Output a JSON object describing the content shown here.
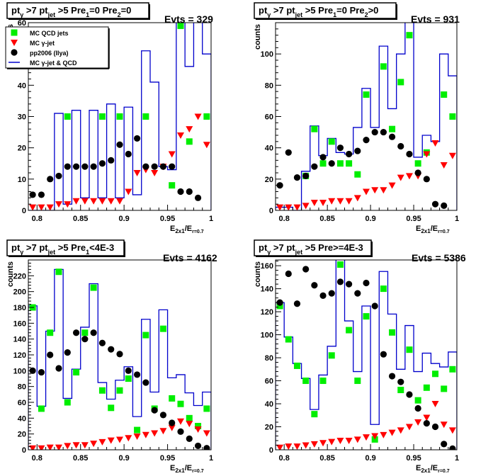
{
  "figure": {
    "background": "#ffffff"
  },
  "colors": {
    "qcd": "#00ee00",
    "gamma": "#ff0000",
    "data": "#000000",
    "sum": "#0000cc"
  },
  "legend": {
    "entries": [
      {
        "label": "MC QCD jets",
        "marker": "square",
        "color": "#00ee00"
      },
      {
        "label": "MC γ-jet",
        "marker": "triangle-down",
        "color": "#ff0000"
      },
      {
        "label": "pp2006 (Ilya)",
        "marker": "circle",
        "color": "#000000"
      },
      {
        "label": "MC γ-jet & QCD",
        "marker": "line",
        "color": "#0000cc"
      }
    ]
  },
  "chart_data": [
    {
      "type": "histogram+scatter",
      "title": "ptγ>7 pt jet>5 Pre1=0 Pre2=0",
      "title_parts": {
        "a": "pt",
        "a_sub": "γ",
        "b": " >7  pt",
        "b_sub": "jet",
        "c": " >5 Pre",
        "c_sub": "1",
        "d": "=0 Pre",
        "d_sub": "2",
        "e": "=0"
      },
      "stats": "Evts = 329",
      "ylabel": "counts",
      "xlabel": "E2x1/Er=0.7",
      "xlabel_parts": {
        "main": "E",
        "sub1": "2x1",
        "mid": "/E",
        "sub2": "r=0.7"
      },
      "xlim": [
        0.79,
        1.0
      ],
      "ylim": [
        0,
        60
      ],
      "x_ticks": [
        "0.8",
        "0.85",
        "0.9",
        "0.95",
        "1"
      ],
      "y_ticks": [
        0,
        10,
        20,
        30,
        40,
        50,
        60
      ],
      "legend": true,
      "bins": [
        0.79,
        0.8,
        0.81,
        0.82,
        0.83,
        0.84,
        0.85,
        0.86,
        0.87,
        0.88,
        0.89,
        0.9,
        0.91,
        0.92,
        0.93,
        0.94,
        0.95,
        0.96,
        0.97,
        0.98,
        0.99,
        1.0
      ],
      "series": [
        {
          "name": "MC QCD jets",
          "marker": "square",
          "x": [
            0.835,
            0.875,
            0.895,
            0.925,
            0.955,
            0.965,
            0.975,
            0.995
          ],
          "y": [
            30,
            30,
            30,
            30,
            8,
            59,
            22,
            30
          ]
        },
        {
          "name": "MC γ-jet",
          "marker": "triangle-down",
          "x": [
            0.795,
            0.805,
            0.815,
            0.825,
            0.835,
            0.845,
            0.855,
            0.865,
            0.875,
            0.885,
            0.895,
            0.905,
            0.915,
            0.925,
            0.935,
            0.945,
            0.955,
            0.965,
            0.975,
            0.985,
            0.995
          ],
          "y": [
            1,
            1,
            1,
            2,
            2,
            3,
            3,
            3,
            3,
            3,
            3,
            6,
            12,
            13,
            12,
            14,
            18,
            24,
            26,
            30,
            21
          ]
        },
        {
          "name": "pp2006 (Ilya)",
          "marker": "circle",
          "x": [
            0.795,
            0.805,
            0.815,
            0.825,
            0.835,
            0.845,
            0.855,
            0.865,
            0.875,
            0.885,
            0.895,
            0.905,
            0.915,
            0.925,
            0.935,
            0.945,
            0.955,
            0.965,
            0.975,
            0.985
          ],
          "y": [
            5,
            5,
            10,
            11,
            14,
            14,
            14,
            14,
            15,
            16,
            21,
            18,
            23,
            14,
            14,
            14,
            14,
            6,
            6,
            4
          ]
        },
        {
          "name": "MC γ-jet & QCD",
          "marker": "hist",
          "y": [
            0,
            0,
            0,
            31,
            2,
            32,
            4,
            32,
            4,
            34,
            4,
            33,
            5,
            51,
            41,
            14,
            13,
            65,
            46,
            63,
            50
          ]
        }
      ]
    },
    {
      "type": "histogram+scatter",
      "title": "ptγ>7 pt jet>5 Pre1=0 Pre2>0",
      "title_parts": {
        "a": "pt",
        "a_sub": "γ",
        "b": " >7  pt",
        "b_sub": "jet",
        "c": " >5 Pre",
        "c_sub": "1",
        "d": "=0 Pre",
        "d_sub": "2",
        "e": ">0"
      },
      "stats": "Evts = 931",
      "ylabel": "counts",
      "xlabel": "E2x1/Er=0.7",
      "xlabel_parts": {
        "main": "E",
        "sub1": "2x1",
        "mid": "/E",
        "sub2": "r=0.7"
      },
      "xlim": [
        0.79,
        1.0
      ],
      "ylim": [
        0,
        120
      ],
      "x_ticks": [
        "0.8",
        "0.85",
        "0.9",
        "0.95",
        "1"
      ],
      "y_ticks": [
        0,
        20,
        40,
        60,
        80,
        100
      ],
      "legend": false,
      "bins": [
        0.79,
        0.8,
        0.81,
        0.82,
        0.83,
        0.84,
        0.85,
        0.86,
        0.87,
        0.88,
        0.89,
        0.9,
        0.91,
        0.92,
        0.93,
        0.94,
        0.95,
        0.96,
        0.97,
        0.98,
        0.99,
        1.0
      ],
      "series": [
        {
          "name": "MC QCD jets",
          "marker": "square",
          "x": [
            0.825,
            0.835,
            0.845,
            0.855,
            0.865,
            0.875,
            0.885,
            0.895,
            0.915,
            0.925,
            0.935,
            0.945,
            0.955,
            0.965,
            0.985,
            0.995
          ],
          "y": [
            22,
            52,
            30,
            44,
            30,
            30,
            23,
            74,
            92,
            52,
            82,
            112,
            30,
            37,
            74,
            60
          ]
        },
        {
          "name": "MC γ-jet",
          "marker": "triangle-down",
          "x": [
            0.795,
            0.805,
            0.815,
            0.825,
            0.835,
            0.845,
            0.855,
            0.865,
            0.875,
            0.885,
            0.895,
            0.905,
            0.915,
            0.925,
            0.935,
            0.945,
            0.955,
            0.965,
            0.975,
            0.985,
            0.995
          ],
          "y": [
            2,
            2,
            2,
            3,
            5,
            5,
            6,
            6,
            6,
            8,
            12,
            13,
            13,
            16,
            21,
            22,
            22,
            36,
            43,
            29,
            35
          ]
        },
        {
          "name": "pp2006 (Ilya)",
          "marker": "circle",
          "x": [
            0.795,
            0.805,
            0.815,
            0.825,
            0.835,
            0.845,
            0.855,
            0.865,
            0.875,
            0.885,
            0.895,
            0.905,
            0.915,
            0.925,
            0.935,
            0.945,
            0.955,
            0.965,
            0.975,
            0.985
          ],
          "y": [
            16,
            37,
            21,
            22,
            28,
            34,
            30,
            40,
            36,
            38,
            45,
            50,
            50,
            47,
            41,
            36,
            24,
            20,
            4,
            3
          ]
        },
        {
          "name": "MC γ-jet & QCD",
          "marker": "hist",
          "y": [
            2,
            2,
            0,
            25,
            54,
            35,
            46,
            37,
            36,
            53,
            78,
            53,
            105,
            65,
            100,
            130,
            34,
            48,
            44,
            100,
            86
          ]
        }
      ]
    },
    {
      "type": "histogram+scatter",
      "title": "ptγ>7 pt jet>5 Pre1<4E-3",
      "title_parts": {
        "a": "pt",
        "a_sub": "γ",
        "b": " >7  pt",
        "b_sub": "jet",
        "c": " >5 Pre",
        "c_sub": "1",
        "d": "<4E-3",
        "d_sub": "",
        "e": ""
      },
      "stats": "Evts = 4162",
      "ylabel": "counts",
      "xlabel": "E2x1/Er=0.7",
      "xlabel_parts": {
        "main": "E",
        "sub1": "2x1",
        "mid": "/E",
        "sub2": "r=0.7"
      },
      "xlim": [
        0.79,
        1.0
      ],
      "ylim": [
        0,
        240
      ],
      "x_ticks": [
        "0.8",
        "0.85",
        "0.9",
        "0.95",
        "1"
      ],
      "y_ticks": [
        0,
        20,
        40,
        60,
        80,
        100,
        120,
        140,
        160,
        180,
        200,
        220
      ],
      "legend": false,
      "bins": [
        0.79,
        0.8,
        0.81,
        0.82,
        0.83,
        0.84,
        0.85,
        0.86,
        0.87,
        0.88,
        0.89,
        0.9,
        0.91,
        0.92,
        0.93,
        0.94,
        0.95,
        0.96,
        0.97,
        0.98,
        0.99,
        1.0
      ],
      "series": [
        {
          "name": "MC QCD jets",
          "marker": "square",
          "x": [
            0.795,
            0.805,
            0.815,
            0.825,
            0.835,
            0.845,
            0.855,
            0.865,
            0.875,
            0.885,
            0.895,
            0.905,
            0.915,
            0.925,
            0.935,
            0.945,
            0.955,
            0.965,
            0.975,
            0.985,
            0.995
          ],
          "y": [
            180,
            52,
            148,
            225,
            60,
            98,
            148,
            205,
            75,
            53,
            75,
            90,
            25,
            145,
            52,
            153,
            65,
            58,
            40,
            30,
            52
          ]
        },
        {
          "name": "MC γ-jet",
          "marker": "triangle-down",
          "x": [
            0.795,
            0.805,
            0.815,
            0.825,
            0.835,
            0.845,
            0.855,
            0.865,
            0.875,
            0.885,
            0.895,
            0.905,
            0.915,
            0.925,
            0.935,
            0.945,
            0.955,
            0.965,
            0.975,
            0.985,
            0.995
          ],
          "y": [
            2,
            2,
            3,
            3,
            5,
            6,
            6,
            8,
            10,
            12,
            13,
            15,
            17,
            19,
            21,
            24,
            28,
            36,
            33,
            26,
            21
          ]
        },
        {
          "name": "pp2006 (Ilya)",
          "marker": "circle",
          "x": [
            0.795,
            0.805,
            0.815,
            0.825,
            0.835,
            0.845,
            0.855,
            0.865,
            0.875,
            0.885,
            0.895,
            0.905,
            0.915,
            0.925,
            0.935,
            0.945,
            0.955,
            0.965,
            0.975,
            0.985,
            0.995
          ],
          "y": [
            100,
            98,
            120,
            103,
            123,
            148,
            140,
            148,
            135,
            127,
            121,
            100,
            95,
            85,
            50,
            44,
            34,
            23,
            14,
            5,
            2
          ]
        },
        {
          "name": "MC γ-jet & QCD",
          "marker": "hist",
          "y": [
            182,
            55,
            150,
            228,
            65,
            102,
            155,
            210,
            85,
            64,
            88,
            105,
            42,
            165,
            73,
            177,
            91,
            95,
            72,
            56,
            73
          ]
        }
      ]
    },
    {
      "type": "histogram+scatter",
      "title": "ptγ>7 pt jet>5 Pre>=4E-3",
      "title_parts": {
        "a": "pt",
        "a_sub": "γ",
        "b": " >7  pt",
        "b_sub": "jet",
        "c": " >5 Pre>=4E-3",
        "c_sub": "",
        "d": "",
        "d_sub": "",
        "e": ""
      },
      "stats": "Evts = 5386",
      "ylabel": "counts",
      "xlabel": "E2x1/Er=0.7",
      "xlabel_parts": {
        "main": "E",
        "sub1": "2x1",
        "mid": "/E",
        "sub2": "r=0.7"
      },
      "xlim": [
        0.79,
        1.0
      ],
      "ylim": [
        0,
        165
      ],
      "x_ticks": [
        "0.8",
        "0.85",
        "0.9",
        "0.95",
        "1"
      ],
      "y_ticks": [
        0,
        20,
        40,
        60,
        80,
        100,
        120,
        140,
        160
      ],
      "legend": false,
      "bins": [
        0.79,
        0.8,
        0.81,
        0.82,
        0.83,
        0.84,
        0.85,
        0.86,
        0.87,
        0.88,
        0.89,
        0.9,
        0.91,
        0.92,
        0.93,
        0.94,
        0.95,
        0.96,
        0.97,
        0.98,
        0.99,
        1.0
      ],
      "series": [
        {
          "name": "MC QCD jets",
          "marker": "square",
          "x": [
            0.795,
            0.805,
            0.815,
            0.825,
            0.835,
            0.845,
            0.855,
            0.865,
            0.875,
            0.885,
            0.895,
            0.905,
            0.915,
            0.925,
            0.935,
            0.945,
            0.955,
            0.965,
            0.975,
            0.985,
            0.995
          ],
          "y": [
            125,
            96,
            73,
            60,
            31,
            60,
            82,
            161,
            104,
            60,
            116,
            9,
            140,
            102,
            52,
            87,
            43,
            54,
            66,
            53,
            70
          ]
        },
        {
          "name": "MC γ-jet",
          "marker": "triangle-down",
          "x": [
            0.795,
            0.805,
            0.815,
            0.825,
            0.835,
            0.845,
            0.855,
            0.865,
            0.875,
            0.885,
            0.895,
            0.905,
            0.915,
            0.925,
            0.935,
            0.945,
            0.955,
            0.965,
            0.975,
            0.985,
            0.995
          ],
          "y": [
            2,
            3,
            3,
            4,
            5,
            6,
            7,
            8,
            8,
            9,
            11,
            12,
            13,
            15,
            17,
            20,
            24,
            28,
            40,
            22,
            17
          ]
        },
        {
          "name": "pp2006 (Ilya)",
          "marker": "circle",
          "x": [
            0.795,
            0.805,
            0.815,
            0.825,
            0.835,
            0.845,
            0.855,
            0.865,
            0.875,
            0.885,
            0.895,
            0.905,
            0.915,
            0.925,
            0.935,
            0.945,
            0.955,
            0.965,
            0.975,
            0.985,
            0.995
          ],
          "y": [
            128,
            153,
            127,
            157,
            143,
            134,
            136,
            146,
            144,
            136,
            145,
            125,
            83,
            64,
            59,
            48,
            36,
            23,
            20,
            5,
            1
          ]
        },
        {
          "name": "MC γ-jet & QCD",
          "marker": "hist",
          "y": [
            128,
            98,
            75,
            62,
            35,
            65,
            90,
            170,
            112,
            68,
            125,
            22,
            155,
            118,
            70,
            108,
            68,
            84,
            75,
            72,
            85
          ]
        }
      ]
    }
  ]
}
